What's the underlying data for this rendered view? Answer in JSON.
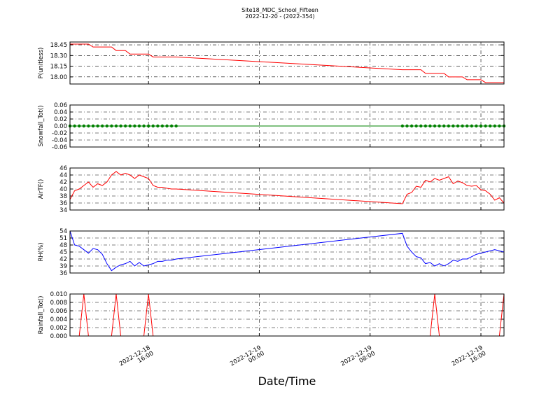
{
  "chart_data": {
    "type": "line",
    "title": "Site18_MDC_School_Fifteen",
    "subtitle": "2022-12-20 - (2022-354)",
    "xlabel": "Date/Time",
    "grid": true,
    "xlim": [
      "2022-12-18 10:20",
      "2022-12-19 17:40"
    ],
    "xticks": [
      {
        "value": "2022-12-18 16:00",
        "label": "2022-12-18\n16:00"
      },
      {
        "value": "2022-12-19 00:00",
        "label": "2022-12-19\n00:00"
      },
      {
        "value": "2022-12-19 08:00",
        "label": "2022-12-19\n08:00"
      },
      {
        "value": "2022-12-19 16:00",
        "label": "2022-12-19\n16:00"
      }
    ],
    "x": [
      "2022-12-18 10:20",
      "2022-12-18 10:40",
      "2022-12-18 11:00",
      "2022-12-18 11:20",
      "2022-12-18 11:40",
      "2022-12-18 12:00",
      "2022-12-18 12:20",
      "2022-12-18 12:40",
      "2022-12-18 13:00",
      "2022-12-18 13:20",
      "2022-12-18 13:40",
      "2022-12-18 14:00",
      "2022-12-18 14:20",
      "2022-12-18 14:40",
      "2022-12-18 15:00",
      "2022-12-18 15:20",
      "2022-12-18 15:40",
      "2022-12-18 16:00",
      "2022-12-18 16:20",
      "2022-12-18 16:40",
      "2022-12-18 17:00",
      "2022-12-18 17:20",
      "2022-12-18 17:40",
      "2022-12-18 18:00",
      "2022-12-19 10:20",
      "2022-12-19 10:40",
      "2022-12-19 11:00",
      "2022-12-19 11:20",
      "2022-12-19 11:40",
      "2022-12-19 12:00",
      "2022-12-19 12:20",
      "2022-12-19 12:40",
      "2022-12-19 13:00",
      "2022-12-19 13:20",
      "2022-12-19 13:40",
      "2022-12-19 14:00",
      "2022-12-19 14:20",
      "2022-12-19 14:40",
      "2022-12-19 15:00",
      "2022-12-19 15:20",
      "2022-12-19 15:40",
      "2022-12-19 16:00",
      "2022-12-19 16:20",
      "2022-12-19 16:40",
      "2022-12-19 17:00",
      "2022-12-19 17:20",
      "2022-12-19 17:40"
    ],
    "panels": [
      {
        "ylabel": "P(unitless)",
        "ylim": [
          17.9,
          18.49
        ],
        "yticks": [
          {
            "value": 18.0,
            "label": "18.00"
          },
          {
            "value": 18.15,
            "label": "18.15"
          },
          {
            "value": 18.3,
            "label": "18.30"
          },
          {
            "value": 18.45,
            "label": "18.45"
          }
        ],
        "series": [
          {
            "color": "#ff0000",
            "values": [
              18.46,
              18.46,
              18.46,
              18.46,
              18.46,
              18.42,
              18.42,
              18.42,
              18.42,
              18.42,
              18.37,
              18.37,
              18.37,
              18.32,
              18.32,
              18.32,
              18.32,
              18.32,
              18.28,
              18.28,
              18.28,
              18.28,
              18.28,
              18.28,
              18.1,
              18.1,
              18.1,
              18.1,
              18.1,
              18.05,
              18.05,
              18.05,
              18.05,
              18.05,
              18.0,
              18.0,
              18.0,
              18.0,
              17.96,
              17.96,
              17.96,
              17.96,
              17.92,
              17.92,
              17.92,
              17.92,
              17.92
            ]
          }
        ]
      },
      {
        "ylabel": "Snowfall_Tot()",
        "ylim": [
          -0.06,
          0.06
        ],
        "yticks": [
          -0.06,
          -0.04,
          -0.02,
          {
            "value": 0,
            "label": "0.00"
          },
          0.02,
          0.04,
          0.06
        ],
        "series": [
          {
            "color": "#008000",
            "marker": "circle",
            "values": [
              0,
              0,
              0,
              0,
              0,
              0,
              0,
              0,
              0,
              0,
              0,
              0,
              0,
              0,
              0,
              0,
              0,
              0,
              0,
              0,
              0,
              0,
              0,
              0,
              0,
              0,
              0,
              0,
              0,
              0,
              0,
              0,
              0,
              0,
              0,
              0,
              0,
              0,
              0,
              0,
              0,
              0,
              0,
              0,
              0,
              0,
              0
            ]
          }
        ]
      },
      {
        "ylabel": "AirTF()",
        "ylim": [
          34,
          46
        ],
        "yticks": [
          34,
          36,
          38,
          40,
          42,
          44,
          46
        ],
        "series": [
          {
            "color": "#ff0000",
            "values": [
              37,
              39.5,
              40,
              41,
              42,
              40.5,
              41.5,
              41,
              42,
              44,
              45,
              44,
              44.5,
              44,
              43,
              44,
              43.5,
              43,
              41,
              40.5,
              40.5,
              40.2,
              40,
              40,
              35.8,
              38.5,
              39,
              40.8,
              40.5,
              42.5,
              42,
              43,
              42.5,
              43,
              43.5,
              41.5,
              42.3,
              41.8,
              41,
              40.8,
              41,
              39.8,
              39.5,
              38.5,
              36.8,
              37.5,
              36
            ]
          }
        ]
      },
      {
        "ylabel": "RH(%)",
        "ylim": [
          36,
          54
        ],
        "yticks": [
          36,
          39,
          42,
          45,
          48,
          51,
          54
        ],
        "series": [
          {
            "color": "#0000ff",
            "values": [
              54,
              48,
              47.5,
              46,
              44.5,
              46.5,
              46,
              44,
              40,
              37,
              38.5,
              39.5,
              40,
              41,
              39,
              40.5,
              39,
              39.5,
              40,
              41,
              41,
              41.5,
              41.5,
              42,
              53,
              47.5,
              45,
              43,
              42.5,
              40,
              40.5,
              39,
              40,
              39,
              40,
              41.5,
              41,
              42,
              42,
              43,
              44,
              44.5,
              45,
              45.5,
              46,
              45.5,
              45
            ]
          }
        ]
      },
      {
        "ylabel": "Rainfall_Tot()",
        "ylim": [
          0,
          0.01
        ],
        "yticks": [
          {
            "value": 0,
            "label": "0.000"
          },
          {
            "value": 0.002,
            "label": "0.002"
          },
          {
            "value": 0.004,
            "label": "0.004"
          },
          {
            "value": 0.006,
            "label": "0.006"
          },
          {
            "value": 0.008,
            "label": "0.008"
          },
          {
            "value": 0.01,
            "label": "0.010"
          }
        ],
        "series": [
          {
            "color": "#ff0000",
            "values": [
              0,
              0,
              0,
              0.01,
              0,
              0,
              0,
              0,
              0,
              0,
              0.01,
              0,
              0,
              0,
              0,
              0,
              0,
              0.01,
              0,
              0,
              0,
              0,
              0,
              0,
              0,
              0,
              0,
              0,
              0,
              0,
              0,
              0.01,
              0,
              0,
              0,
              0,
              0,
              0,
              0,
              0,
              0,
              0,
              0,
              0,
              0,
              0,
              0.01
            ]
          }
        ]
      }
    ]
  }
}
